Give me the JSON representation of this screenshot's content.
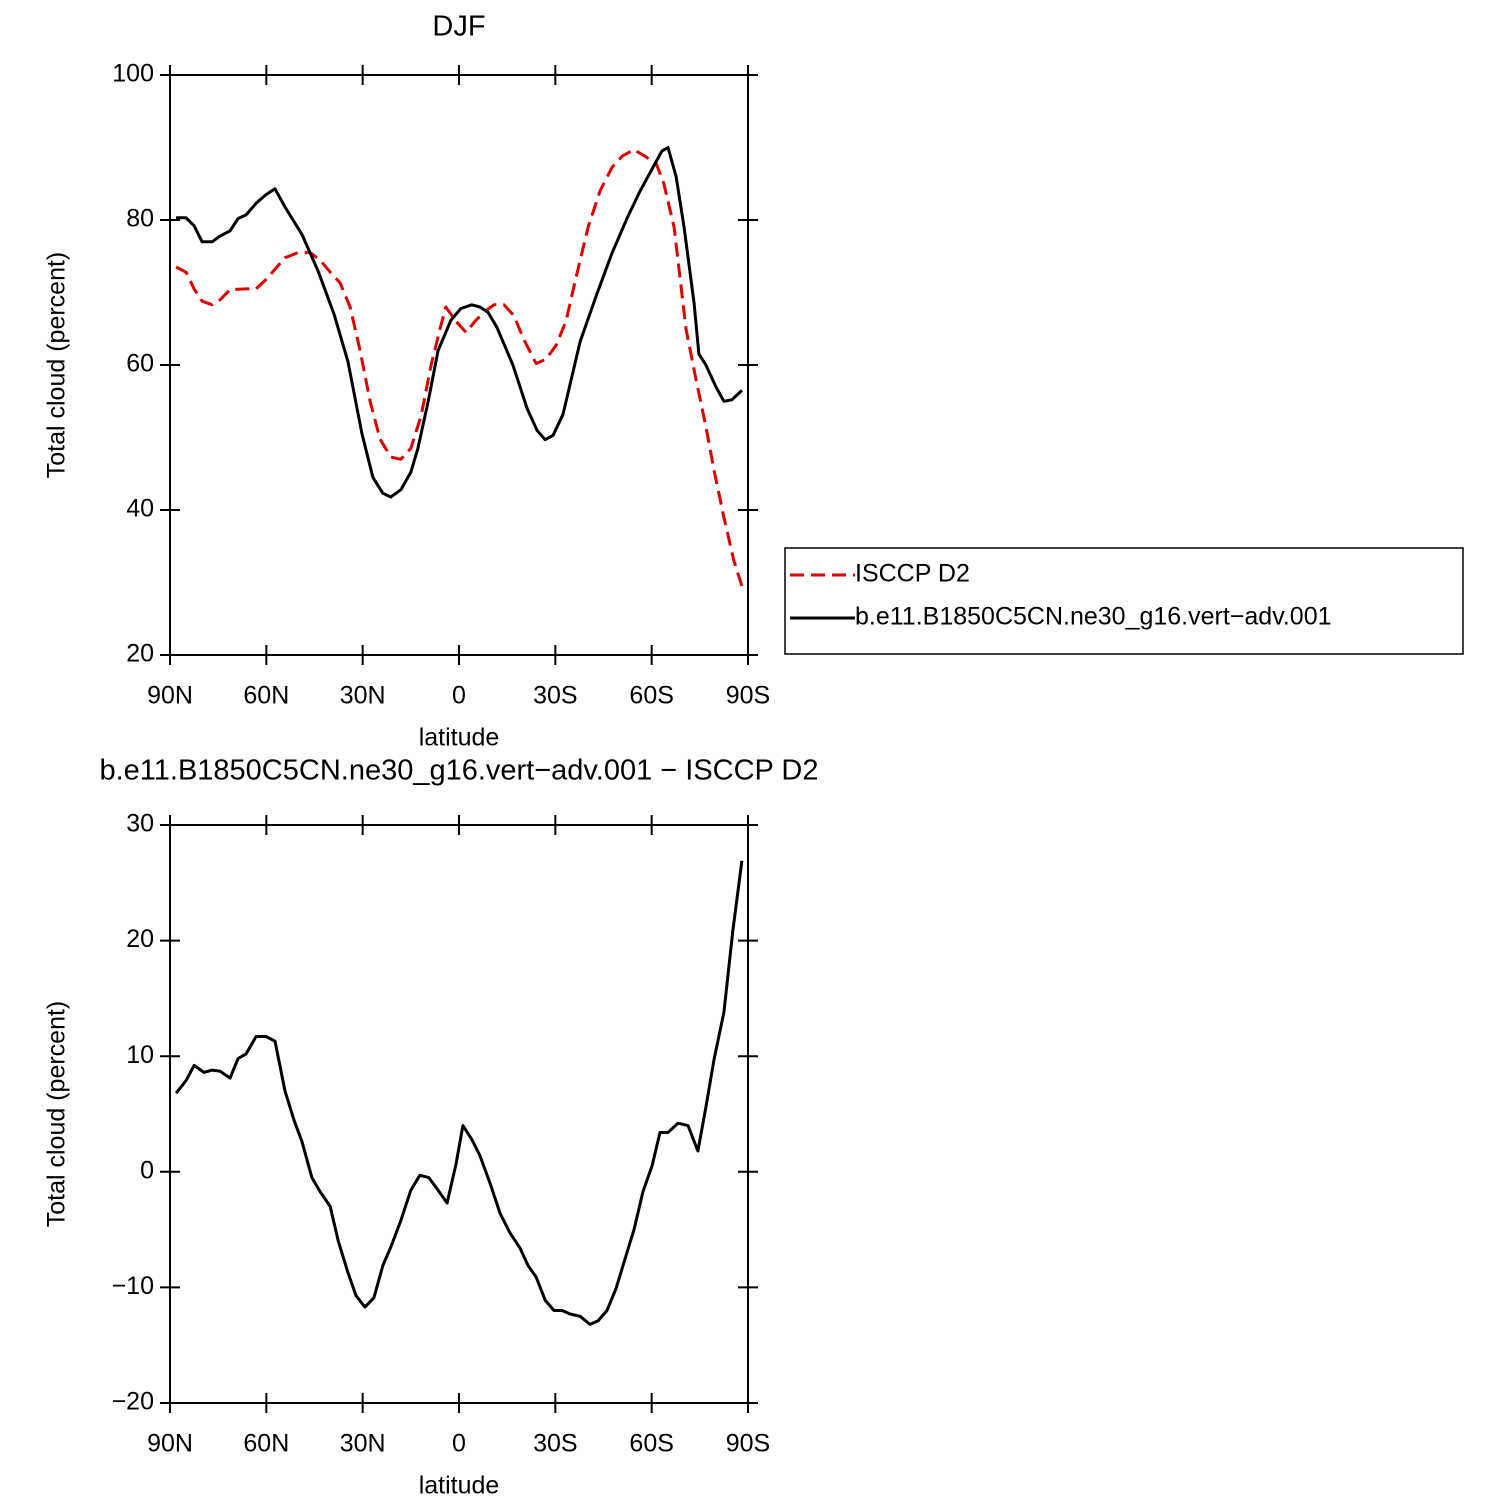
{
  "chart_data": [
    {
      "type": "line",
      "title": "DJF",
      "xlabel": "latitude",
      "ylabel": "Total cloud (percent)",
      "xlim": [
        90,
        -90
      ],
      "ylim": [
        20,
        100
      ],
      "xticks": [
        {
          "value": 90,
          "label": "90N"
        },
        {
          "value": 60,
          "label": "60N"
        },
        {
          "value": 30,
          "label": "30N"
        },
        0,
        {
          "value": -30,
          "label": "30S"
        },
        {
          "value": -60,
          "label": "60S"
        },
        {
          "value": -90,
          "label": "90S"
        }
      ],
      "yticks": [
        20,
        40,
        60,
        80,
        100
      ],
      "legend": "right",
      "series": [
        {
          "name": "ISCCP D2",
          "color": "#e00000",
          "dash": true,
          "x": [
            88.1,
            85,
            82.5,
            80,
            76.9,
            74.4,
            71.3,
            66.3,
            63.2,
            60.1,
            57.3,
            54.2,
            50.1,
            46.4,
            43.3,
            40.1,
            37,
            33.9,
            30.8,
            27.7,
            24.6,
            21.2,
            18.1,
            15,
            11.8,
            8.7,
            5.6,
            4.1,
            0.9,
            -2.2,
            -5.3,
            -8.4,
            -10.9,
            -14,
            -17.1,
            -20.2,
            -24,
            -27.1,
            -30.2,
            -33.3,
            -36.4,
            -40.2,
            -43.9,
            -47.7,
            -50.8,
            -54.5,
            -57.9,
            -61.4,
            -63.8,
            -67,
            -70.7,
            -73.8,
            -76.9,
            -79.4,
            -82.5,
            -85.6,
            -88.1
          ],
          "values": [
            73.5,
            72.8,
            70.5,
            68.8,
            68.3,
            69,
            70.4,
            70.5,
            70.5,
            71.8,
            73.2,
            74.8,
            75.5,
            75.5,
            74.5,
            72.8,
            71.3,
            68,
            62,
            55,
            49.8,
            47.3,
            47,
            48.5,
            53,
            60,
            65.5,
            68,
            66,
            64.5,
            66.2,
            67.5,
            68.3,
            68.3,
            66.8,
            63.5,
            60.2,
            60.8,
            62.7,
            66,
            72,
            79,
            84,
            87.3,
            88.8,
            89.7,
            88.8,
            87.8,
            85,
            79,
            65,
            58,
            51.5,
            45.5,
            39,
            33,
            29.5
          ]
        },
        {
          "name": "b.e11.B1850C5CN.ne30_g16.vert−adv.001",
          "color": "#000000",
          "dash": false,
          "x": [
            88.1,
            85,
            82.5,
            80,
            76.9,
            74.4,
            71.3,
            68.8,
            66.3,
            63.2,
            60.1,
            57.3,
            54.2,
            48.9,
            43.9,
            38.9,
            34.6,
            30.2,
            26.8,
            23.7,
            21.2,
            18.1,
            15,
            12.8,
            9.6,
            6.5,
            2.5,
            -0.6,
            -4,
            -6.5,
            -9,
            -11.8,
            -16.8,
            -21.2,
            -24.3,
            -26.8,
            -29.3,
            -32.4,
            -37.7,
            -42.7,
            -47.7,
            -52.6,
            -56.4,
            -60.7,
            -63.2,
            -65.1,
            -67.6,
            -70.1,
            -73.2,
            -74.7,
            -76.9,
            -80,
            -82.5,
            -85,
            -88.1
          ],
          "values": [
            80.3,
            80.3,
            79.2,
            77,
            77,
            77.8,
            78.5,
            80.2,
            80.7,
            82.3,
            83.5,
            84.3,
            81.8,
            78,
            73,
            67,
            60.5,
            50.5,
            44.5,
            42.3,
            41.8,
            42.8,
            45.2,
            48.5,
            55,
            62,
            66.2,
            67.8,
            68.3,
            68,
            67.3,
            65.2,
            60,
            54,
            51,
            49.7,
            50.3,
            53.2,
            63.2,
            69.5,
            75.5,
            80.5,
            84,
            87.5,
            89.5,
            90,
            86,
            79,
            68.5,
            61.5,
            60,
            57,
            55,
            55.2,
            56.5
          ]
        }
      ]
    },
    {
      "type": "line",
      "title": "b.e11.B1850C5CN.ne30_g16.vert−adv.001 − ISCCP D2",
      "xlabel": "latitude",
      "ylabel": "Total cloud (percent)",
      "xlim": [
        90,
        -90
      ],
      "ylim": [
        -20,
        30
      ],
      "xticks": [
        {
          "value": 90,
          "label": "90N"
        },
        {
          "value": 60,
          "label": "60N"
        },
        {
          "value": 30,
          "label": "30N"
        },
        0,
        {
          "value": -30,
          "label": "30S"
        },
        {
          "value": -60,
          "label": "60S"
        },
        {
          "value": -90,
          "label": "90S"
        }
      ],
      "yticks": [
        {
          "value": -20,
          "label": "−20"
        },
        {
          "value": -10,
          "label": "−10"
        },
        0,
        10,
        20,
        30
      ],
      "series": [
        {
          "color": "#000000",
          "dash": false,
          "x": [
            88.1,
            85,
            82.5,
            79.4,
            76.9,
            74.4,
            71.3,
            68.8,
            66.3,
            63.2,
            60.1,
            57.3,
            54.2,
            51.4,
            48.9,
            45.8,
            43.3,
            40.1,
            37.6,
            34.6,
            32.1,
            29.3,
            26.5,
            23.7,
            21.2,
            18.1,
            15,
            12.2,
            9.4,
            6.5,
            3.7,
            0.9,
            -1.2,
            -4,
            -6.5,
            -9.7,
            -12.8,
            -15.9,
            -19,
            -21.5,
            -24,
            -26.8,
            -29.6,
            -32.1,
            -34.6,
            -37.7,
            -40.8,
            -43.3,
            -46.1,
            -48.9,
            -51.4,
            -54.5,
            -57.3,
            -60.1,
            -62.6,
            -65.1,
            -68.2,
            -71.3,
            -74.4,
            -76.9,
            -79.4,
            -82.5,
            -85.3,
            -88.1
          ],
          "values": [
            6.8,
            7.9,
            9.2,
            8.6,
            8.8,
            8.7,
            8.1,
            9.8,
            10.2,
            11.7,
            11.7,
            11.3,
            7,
            4.5,
            2.6,
            -0.5,
            -1.7,
            -3,
            -6,
            -8.7,
            -10.7,
            -11.7,
            -10.9,
            -8.1,
            -6.5,
            -4.2,
            -1.6,
            -0.3,
            -0.5,
            -1.6,
            -2.7,
            0.7,
            4,
            2.8,
            1.4,
            -1,
            -3.6,
            -5.3,
            -6.6,
            -8.1,
            -9.1,
            -11.1,
            -12,
            -12,
            -12.3,
            -12.5,
            -13.2,
            -12.9,
            -12,
            -10.1,
            -7.8,
            -5,
            -1.7,
            0.5,
            3.4,
            3.4,
            4.2,
            4,
            1.8,
            5.6,
            9.7,
            13.8,
            20.9,
            26.9
          ]
        }
      ]
    }
  ]
}
